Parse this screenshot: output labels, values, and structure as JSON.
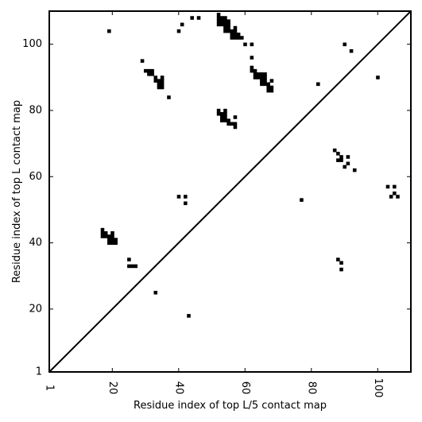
{
  "chart_data": {
    "type": "heatmap",
    "title": "",
    "xlabel": "Residue index of top L/5 contact map",
    "ylabel": "Residue index of top L contact map",
    "xlim": [
      1,
      110
    ],
    "ylim": [
      1,
      110
    ],
    "xticks": [
      {
        "value": 1,
        "label": "1"
      },
      {
        "value": 20,
        "label": "20"
      },
      {
        "value": 40,
        "label": "40"
      },
      {
        "value": 60,
        "label": "60"
      },
      {
        "value": 80,
        "label": "80"
      },
      {
        "value": 100,
        "label": "100"
      }
    ],
    "yticks": [
      {
        "value": 1,
        "label": "1"
      },
      {
        "value": 20,
        "label": "20"
      },
      {
        "value": 40,
        "label": "40"
      },
      {
        "value": 60,
        "label": "60"
      },
      {
        "value": 80,
        "label": "80"
      },
      {
        "value": 100,
        "label": "100"
      }
    ],
    "diagonal": [
      [
        1,
        1
      ],
      [
        110,
        110
      ]
    ],
    "contact_color": "#000000",
    "background_color": "#ffffff",
    "contacts": [
      [
        19,
        104
      ],
      [
        40,
        104
      ],
      [
        41,
        106
      ],
      [
        44,
        108
      ],
      [
        46,
        108
      ],
      [
        52,
        109
      ],
      [
        52,
        108
      ],
      [
        53,
        108
      ],
      [
        54,
        108
      ],
      [
        52,
        107
      ],
      [
        53,
        107
      ],
      [
        54,
        107
      ],
      [
        55,
        107
      ],
      [
        52,
        106
      ],
      [
        53,
        106
      ],
      [
        54,
        106
      ],
      [
        55,
        106
      ],
      [
        54,
        105
      ],
      [
        55,
        105
      ],
      [
        57,
        105
      ],
      [
        54,
        104
      ],
      [
        55,
        104
      ],
      [
        56,
        104
      ],
      [
        57,
        104
      ],
      [
        56,
        103
      ],
      [
        57,
        103
      ],
      [
        58,
        103
      ],
      [
        56,
        102
      ],
      [
        57,
        102
      ],
      [
        58,
        102
      ],
      [
        59,
        102
      ],
      [
        60,
        100
      ],
      [
        62,
        100
      ],
      [
        62,
        96
      ],
      [
        29,
        95
      ],
      [
        62,
        93
      ],
      [
        62,
        92
      ],
      [
        63,
        92
      ],
      [
        30,
        92
      ],
      [
        31,
        92
      ],
      [
        32,
        92
      ],
      [
        31,
        91
      ],
      [
        32,
        91
      ],
      [
        33,
        90
      ],
      [
        35,
        90
      ],
      [
        63,
        91
      ],
      [
        64,
        91
      ],
      [
        65,
        91
      ],
      [
        66,
        91
      ],
      [
        63,
        90
      ],
      [
        64,
        90
      ],
      [
        65,
        90
      ],
      [
        66,
        90
      ],
      [
        33,
        89
      ],
      [
        34,
        89
      ],
      [
        35,
        89
      ],
      [
        65,
        89
      ],
      [
        66,
        89
      ],
      [
        68,
        89
      ],
      [
        34,
        88
      ],
      [
        35,
        88
      ],
      [
        65,
        88
      ],
      [
        66,
        88
      ],
      [
        67,
        88
      ],
      [
        34,
        87
      ],
      [
        35,
        87
      ],
      [
        67,
        87
      ],
      [
        68,
        87
      ],
      [
        67,
        86
      ],
      [
        68,
        86
      ],
      [
        37,
        84
      ],
      [
        82,
        88
      ],
      [
        90,
        100
      ],
      [
        92,
        98
      ],
      [
        100,
        90
      ],
      [
        52,
        80
      ],
      [
        54,
        80
      ],
      [
        52,
        79
      ],
      [
        53,
        79
      ],
      [
        54,
        79
      ],
      [
        53,
        78
      ],
      [
        54,
        78
      ],
      [
        57,
        78
      ],
      [
        53,
        77
      ],
      [
        54,
        77
      ],
      [
        55,
        77
      ],
      [
        55,
        76
      ],
      [
        56,
        76
      ],
      [
        57,
        76
      ],
      [
        57,
        75
      ],
      [
        87,
        68
      ],
      [
        88,
        67
      ],
      [
        89,
        66
      ],
      [
        91,
        66
      ],
      [
        88,
        65
      ],
      [
        89,
        65
      ],
      [
        91,
        64
      ],
      [
        90,
        63
      ],
      [
        93,
        62
      ],
      [
        103,
        57
      ],
      [
        105,
        57
      ],
      [
        105,
        55
      ],
      [
        104,
        54
      ],
      [
        106,
        54
      ],
      [
        40,
        54
      ],
      [
        42,
        54
      ],
      [
        42,
        52
      ],
      [
        77,
        53
      ],
      [
        17,
        44
      ],
      [
        17,
        43
      ],
      [
        18,
        43
      ],
      [
        20,
        43
      ],
      [
        17,
        42
      ],
      [
        18,
        42
      ],
      [
        19,
        42
      ],
      [
        20,
        42
      ],
      [
        19,
        41
      ],
      [
        20,
        41
      ],
      [
        21,
        41
      ],
      [
        19,
        40
      ],
      [
        20,
        40
      ],
      [
        21,
        40
      ],
      [
        25,
        35
      ],
      [
        25,
        33
      ],
      [
        26,
        33
      ],
      [
        27,
        33
      ],
      [
        88,
        35
      ],
      [
        89,
        34
      ],
      [
        89,
        32
      ],
      [
        33,
        25
      ],
      [
        43,
        18
      ]
    ]
  }
}
